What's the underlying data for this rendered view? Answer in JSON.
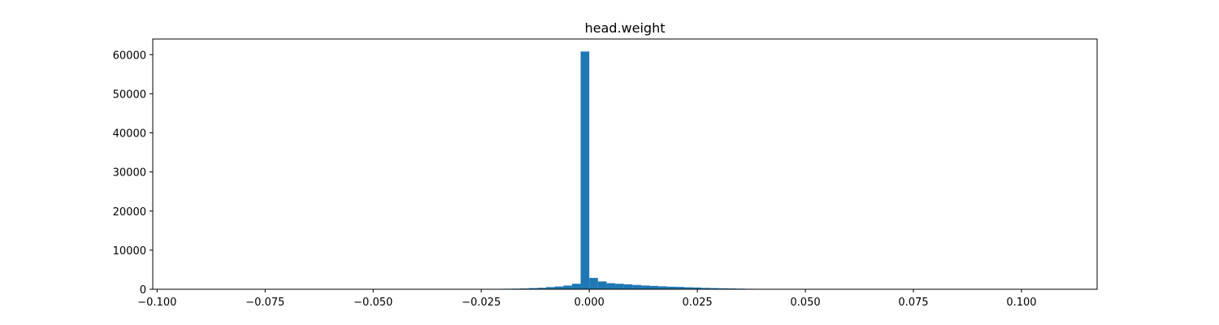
{
  "chart_data": {
    "type": "bar",
    "title": "head.weight",
    "xlabel": "",
    "ylabel": "",
    "xlim": [
      -0.101,
      0.1175
    ],
    "ylim": [
      0,
      64000
    ],
    "grid": false,
    "bar_color": "#1f77b4",
    "bin_edges": [
      -0.024,
      -0.022,
      -0.02,
      -0.018,
      -0.016,
      -0.014,
      -0.012,
      -0.01,
      -0.008,
      -0.006,
      -0.004,
      -0.002,
      0.0,
      0.002,
      0.004,
      0.006,
      0.008,
      0.01,
      0.012,
      0.014,
      0.016,
      0.018,
      0.02,
      0.022,
      0.024,
      0.026,
      0.028,
      0.03,
      0.032,
      0.034,
      0.036,
      0.038,
      0.04
    ],
    "counts": [
      80,
      100,
      130,
      160,
      200,
      300,
      380,
      550,
      700,
      950,
      1400,
      60800,
      2900,
      2000,
      1550,
      1400,
      1250,
      1100,
      950,
      850,
      750,
      650,
      600,
      500,
      450,
      350,
      300,
      250,
      200,
      160,
      120,
      90
    ],
    "x_ticks": [
      {
        "value": -0.1,
        "label": "−0.100"
      },
      {
        "value": -0.075,
        "label": "−0.075"
      },
      {
        "value": -0.05,
        "label": "−0.050"
      },
      {
        "value": -0.025,
        "label": "−0.025"
      },
      {
        "value": 0.0,
        "label": "0.000"
      },
      {
        "value": 0.025,
        "label": "0.025"
      },
      {
        "value": 0.05,
        "label": "0.050"
      },
      {
        "value": 0.075,
        "label": "0.075"
      },
      {
        "value": 0.1,
        "label": "0.100"
      }
    ],
    "y_ticks": [
      {
        "value": 0,
        "label": "0"
      },
      {
        "value": 10000,
        "label": "10000"
      },
      {
        "value": 20000,
        "label": "20000"
      },
      {
        "value": 30000,
        "label": "30000"
      },
      {
        "value": 40000,
        "label": "40000"
      },
      {
        "value": 50000,
        "label": "50000"
      },
      {
        "value": 60000,
        "label": "60000"
      }
    ]
  }
}
